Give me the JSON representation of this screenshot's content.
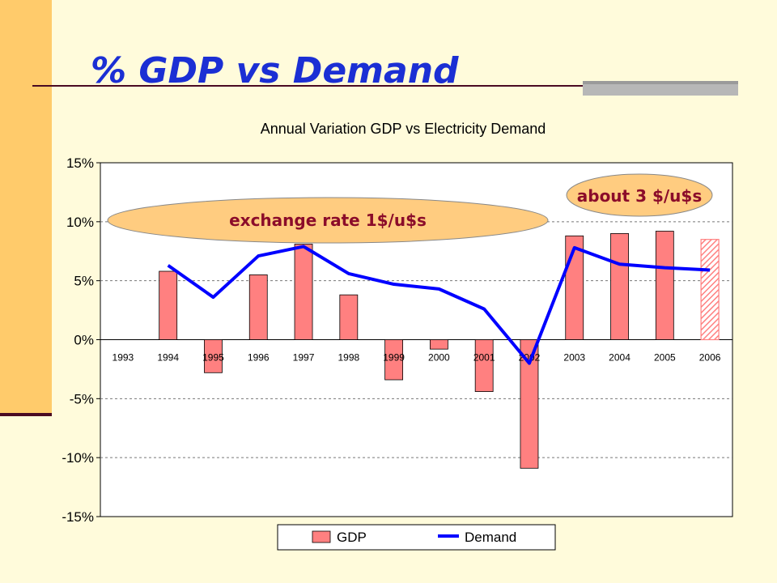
{
  "slide": {
    "title": "% GDP vs Demand"
  },
  "chart_data": {
    "type": "bar",
    "title": "Annual Variation GDP  vs Electricity Demand",
    "categories": [
      "1993",
      "1994",
      "1995",
      "1996",
      "1997",
      "1998",
      "1999",
      "2000",
      "2001",
      "2002",
      "2003",
      "2004",
      "2005",
      "2006"
    ],
    "series": [
      {
        "name": "GDP",
        "type": "bar",
        "color": "#ff8080",
        "values": [
          null,
          5.8,
          -2.8,
          5.5,
          8.1,
          3.8,
          -3.4,
          -0.8,
          -4.4,
          -10.9,
          8.8,
          9.0,
          9.2,
          8.5
        ],
        "hatched_last": true
      },
      {
        "name": "Demand",
        "type": "line",
        "color": "#0000ff",
        "values": [
          null,
          6.3,
          3.6,
          7.1,
          7.9,
          5.6,
          4.7,
          4.3,
          2.6,
          -2.0,
          7.8,
          6.4,
          6.1,
          5.9
        ]
      }
    ],
    "ylim": [
      -15,
      15
    ],
    "yticks": [
      15,
      10,
      5,
      0,
      -5,
      -10,
      -15
    ],
    "ytick_labels": [
      "15%",
      "10%",
      "5%",
      "0%",
      "-5%",
      "-10%",
      "-15%"
    ],
    "grid": true,
    "legend_position": "bottom",
    "annotations": [
      {
        "text": "exchange rate 1$/u$s",
        "fill": "#ffcc80"
      },
      {
        "text": "about 3 $/u$s",
        "fill": "#ffcc80"
      }
    ]
  }
}
